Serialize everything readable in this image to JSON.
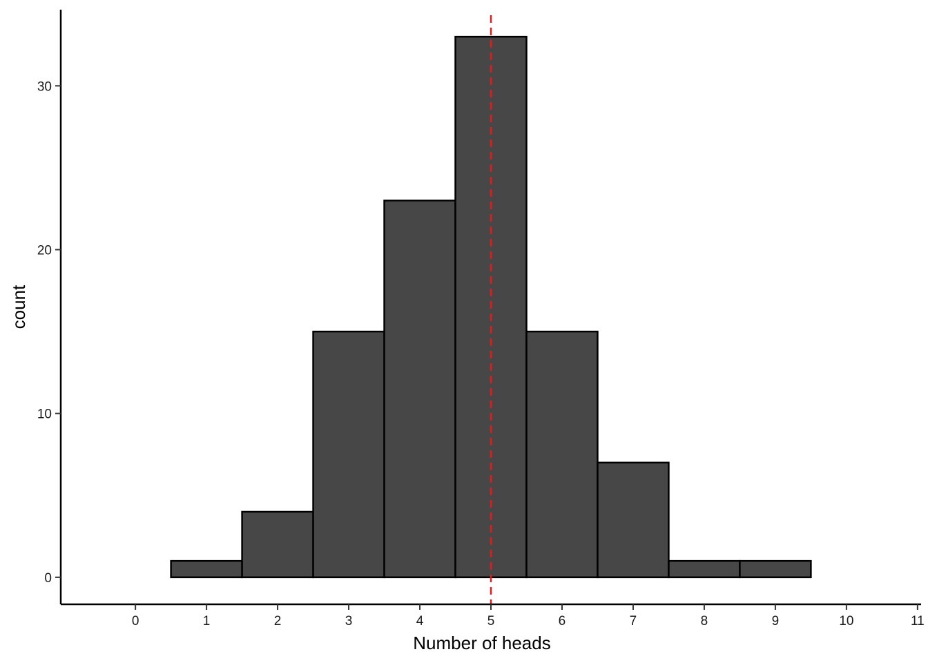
{
  "chart_data": {
    "type": "bar",
    "subtype": "histogram",
    "title": "",
    "xlabel": "Number of heads",
    "ylabel": "count",
    "bins": [
      {
        "x": 0,
        "count": 0
      },
      {
        "x": 1,
        "count": 1
      },
      {
        "x": 2,
        "count": 4
      },
      {
        "x": 3,
        "count": 15
      },
      {
        "x": 4,
        "count": 23
      },
      {
        "x": 5,
        "count": 33
      },
      {
        "x": 6,
        "count": 15
      },
      {
        "x": 7,
        "count": 7
      },
      {
        "x": 8,
        "count": 1
      },
      {
        "x": 9,
        "count": 1
      },
      {
        "x": 10,
        "count": 0
      }
    ],
    "xlim": [
      -1.05,
      11.05
    ],
    "ylim": [
      -1.65,
      34.65
    ],
    "x_ticks": [
      "0",
      "1",
      "2",
      "3",
      "4",
      "5",
      "6",
      "7",
      "8",
      "9",
      "10",
      "11"
    ],
    "y_ticks": [
      "0",
      "10",
      "20",
      "30"
    ],
    "reference_line": {
      "x": 5,
      "style": "dashed",
      "color": "#e41a1c"
    },
    "bar_fill": "#474747",
    "bar_stroke": "#000000",
    "grid": false,
    "legend": "none"
  }
}
